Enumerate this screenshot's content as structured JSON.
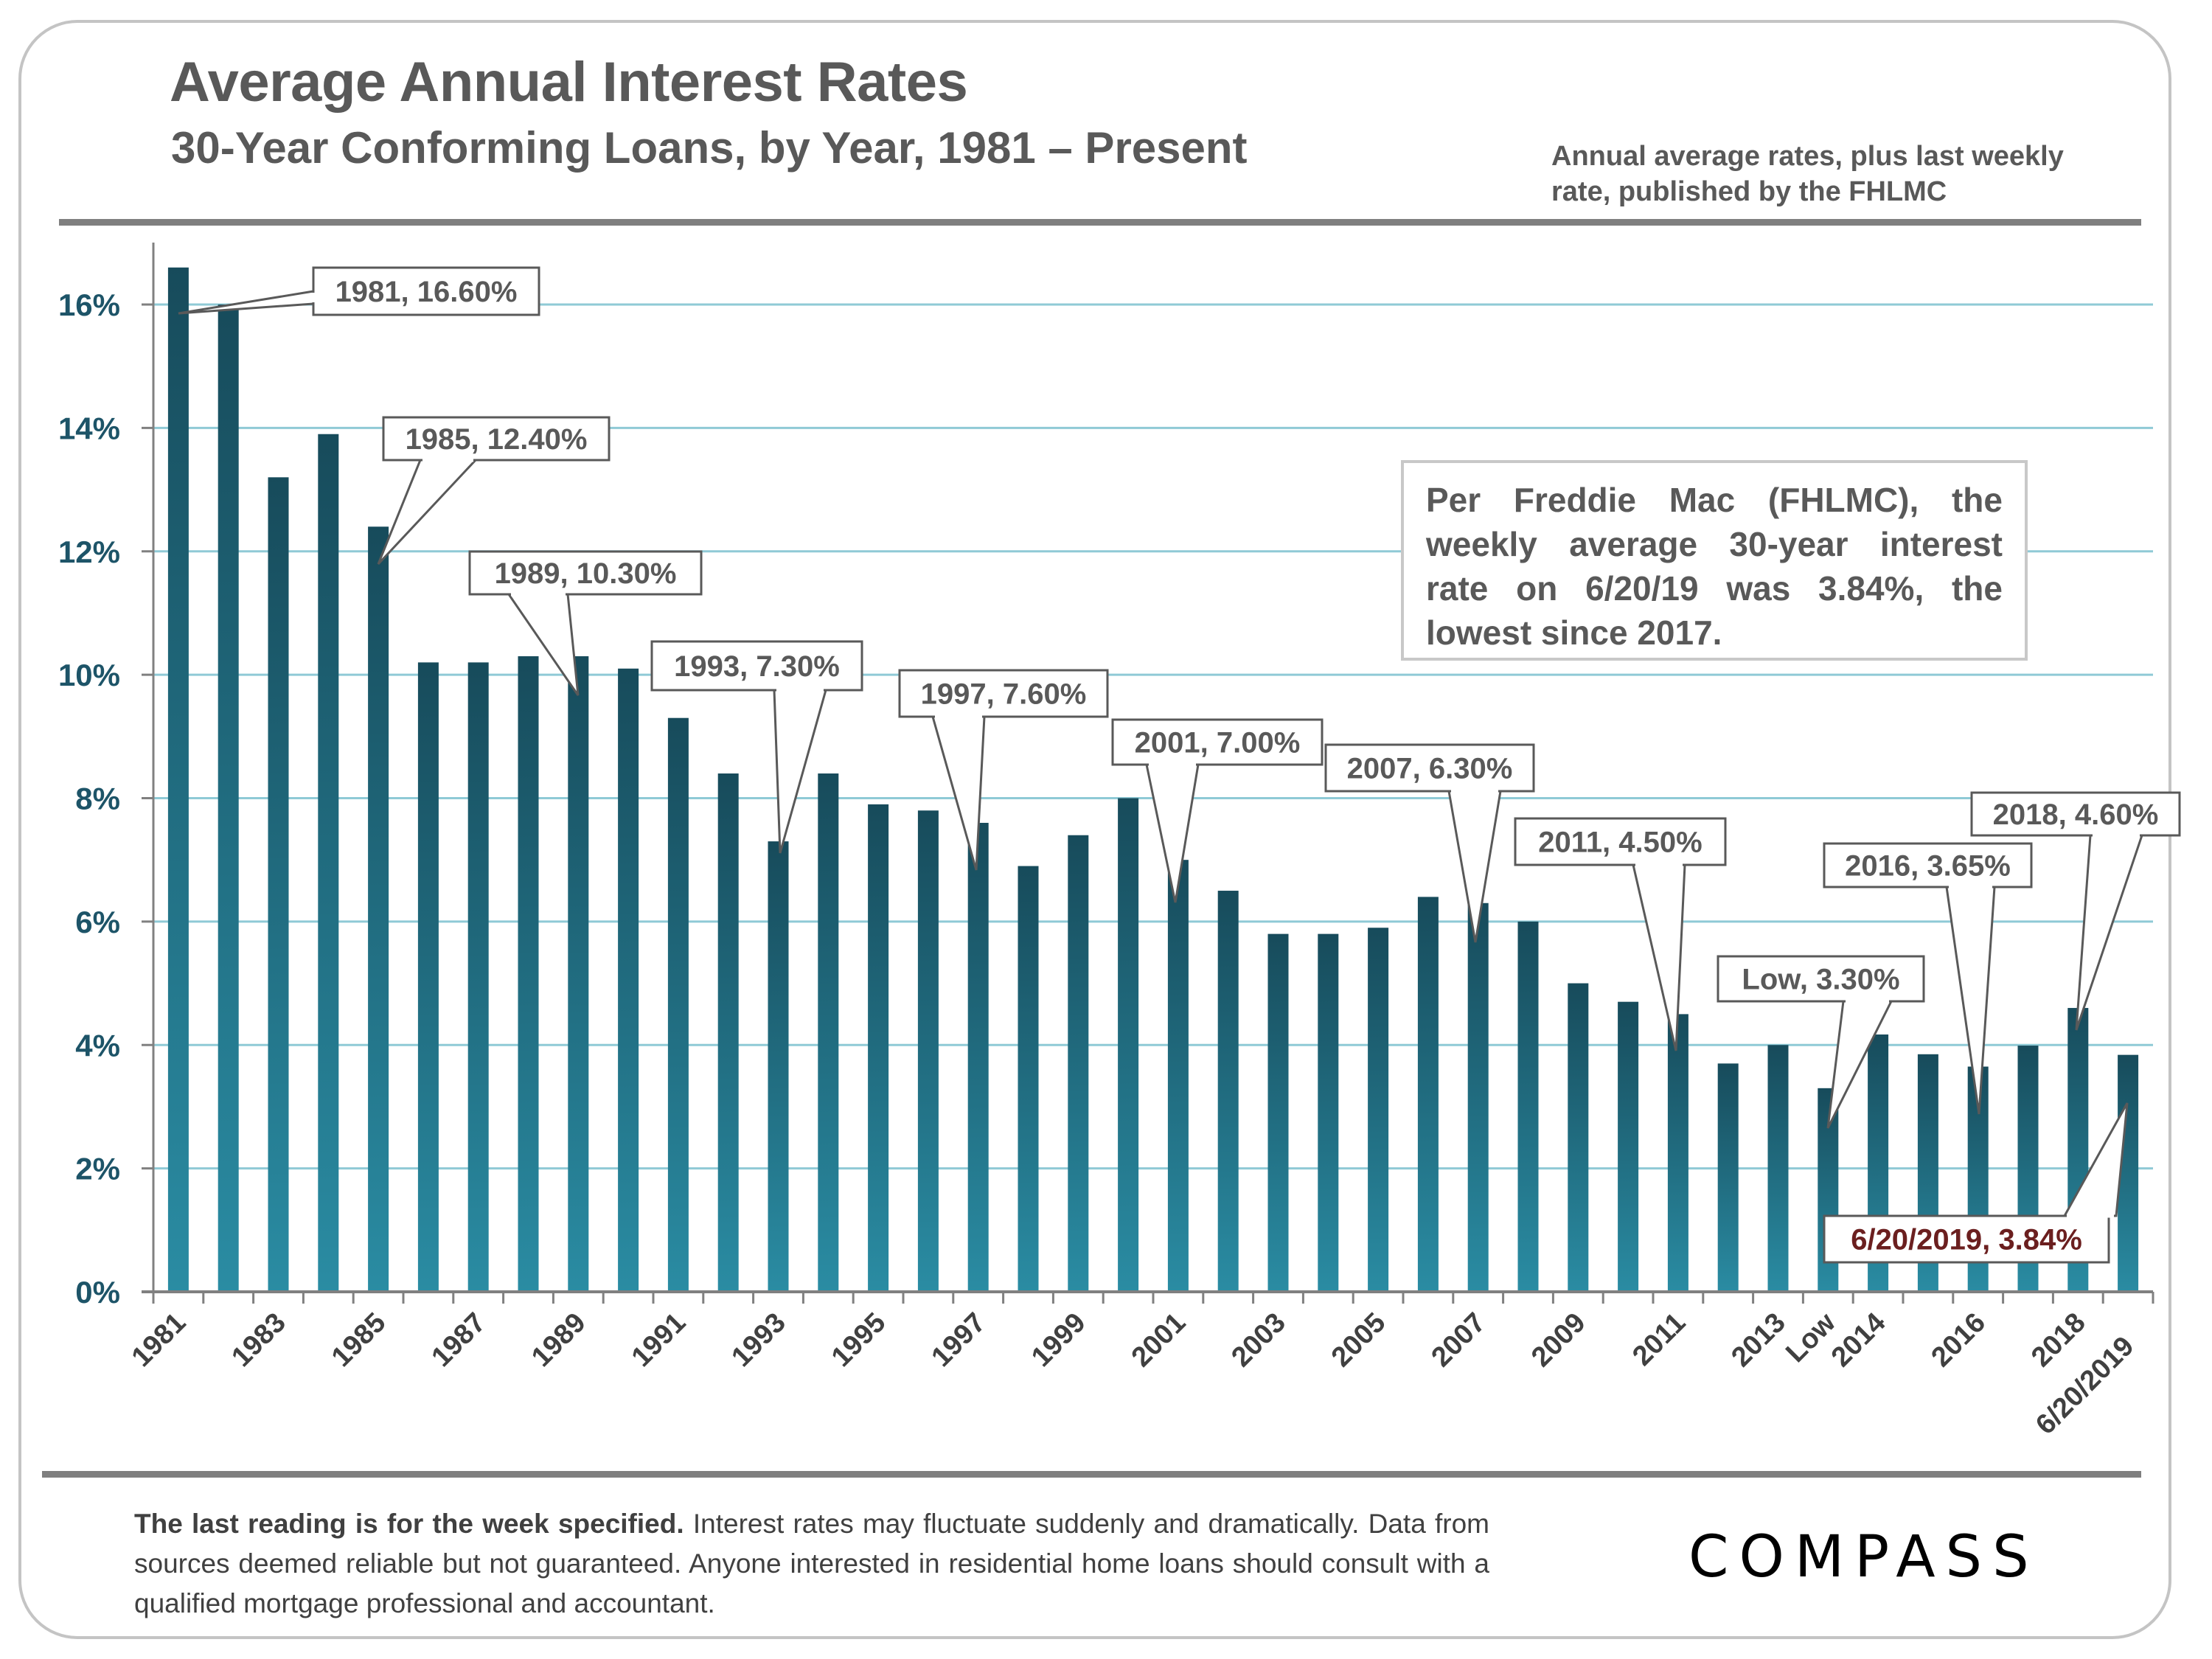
{
  "header": {
    "title": "Average Annual Interest Rates",
    "subtitle": "30-Year Conforming Loans, by Year, 1981 – Present",
    "source_note": "Annual average rates, plus last weekly rate, published by the FHLMC"
  },
  "info_box": {
    "text": "Per Freddie Mac (FHLMC), the weekly average 30-year interest rate on 6/20/19 was 3.84%, the lowest since 2017."
  },
  "footer": {
    "bold_text": "The last reading is for the week specified.",
    "text": " Interest rates may fluctuate suddenly and dramatically. Data from sources deemed reliable but not guaranteed. Anyone interested in residential home loans should consult with a qualified mortgage professional and accountant."
  },
  "logo": {
    "text": "COMPASS"
  },
  "colors": {
    "bar_top": "#174b5b",
    "bar_bottom": "#2a8ca3",
    "gridline": "#8fcad6",
    "axis": "#808080",
    "y_tick_label": "#1d5468",
    "x_tick_label": "#404040",
    "annotation_text": "#595959",
    "annotation_highlight": "#6b1f1f"
  },
  "chart_data": {
    "type": "bar",
    "title": "Average Annual Interest Rates",
    "subtitle": "30-Year Conforming Loans, by Year, 1981 – Present",
    "xlabel": "",
    "ylabel": "",
    "ylim": [
      0,
      17
    ],
    "y_ticks": [
      0,
      2,
      4,
      6,
      8,
      10,
      12,
      14,
      16
    ],
    "y_tick_labels": [
      "0%",
      "2%",
      "4%",
      "6%",
      "8%",
      "10%",
      "12%",
      "14%",
      "16%"
    ],
    "grid": true,
    "legend": "none",
    "categories": [
      "1981",
      "1982",
      "1983",
      "1984",
      "1985",
      "1986",
      "1987",
      "1988",
      "1989",
      "1990",
      "1991",
      "1992",
      "1993",
      "1994",
      "1995",
      "1996",
      "1997",
      "1998",
      "1999",
      "2000",
      "2001",
      "2002",
      "2003",
      "2004",
      "2005",
      "2006",
      "2007",
      "2008",
      "2009",
      "2010",
      "2011",
      "2012",
      "2013",
      "Low",
      "2014",
      "2015",
      "2016",
      "2017",
      "2018",
      "6/20/2019"
    ],
    "visible_x_labels": [
      "1981",
      "1983",
      "1985",
      "1987",
      "1989",
      "1991",
      "1993",
      "1995",
      "1997",
      "1999",
      "2001",
      "2003",
      "2005",
      "2007",
      "2009",
      "2011",
      "2013",
      "Low",
      "2014",
      "2016",
      "2018",
      "6/20/2019"
    ],
    "series": [
      {
        "name": "30-Year Conforming Rate (%)",
        "values": [
          16.6,
          16.0,
          13.2,
          13.9,
          12.4,
          10.2,
          10.2,
          10.3,
          10.3,
          10.1,
          9.3,
          8.4,
          7.3,
          8.4,
          7.9,
          7.8,
          7.6,
          6.9,
          7.4,
          8.0,
          7.0,
          6.5,
          5.8,
          5.8,
          5.9,
          6.4,
          6.3,
          6.0,
          5.0,
          4.7,
          4.5,
          3.7,
          4.0,
          3.3,
          4.17,
          3.85,
          3.65,
          3.99,
          4.6,
          3.84
        ]
      }
    ],
    "annotations": [
      {
        "category": "1981",
        "label": "1981, 16.60%",
        "highlight": false
      },
      {
        "category": "1985",
        "label": "1985, 12.40%",
        "highlight": false
      },
      {
        "category": "1989",
        "label": "1989, 10.30%",
        "highlight": false
      },
      {
        "category": "1993",
        "label": "1993, 7.30%",
        "highlight": false
      },
      {
        "category": "1997",
        "label": "1997, 7.60%",
        "highlight": false
      },
      {
        "category": "2001",
        "label": "2001, 7.00%",
        "highlight": false
      },
      {
        "category": "2007",
        "label": "2007, 6.30%",
        "highlight": false
      },
      {
        "category": "2011",
        "label": "2011, 4.50%",
        "highlight": false
      },
      {
        "category": "Low",
        "label": "Low, 3.30%",
        "highlight": false
      },
      {
        "category": "2016",
        "label": "2016, 3.65%",
        "highlight": false
      },
      {
        "category": "2018",
        "label": "2018, 4.60%",
        "highlight": false
      },
      {
        "category": "6/20/2019",
        "label": "6/20/2019, 3.84%",
        "highlight": true
      }
    ]
  }
}
